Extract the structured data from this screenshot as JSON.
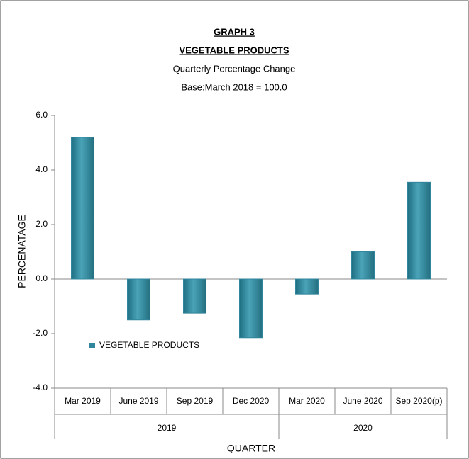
{
  "chart_data": {
    "type": "bar",
    "title": "GRAPH 3",
    "subtitle": "VEGETABLE PRODUCTS",
    "subtitle2": "Quarterly Percentage Change",
    "subtitle3": "Base:March 2018 = 100.0",
    "ylabel": "PERCENATAGE",
    "xlabel": "QUARTER",
    "categories": [
      "Mar 2019",
      "June 2019",
      "Sep 2019",
      "Dec 2020",
      "Mar 2020",
      "June 2020",
      "Sep 2020(p)"
    ],
    "groups": [
      {
        "label": "2019",
        "span": 4
      },
      {
        "label": "2020",
        "span": 3
      }
    ],
    "series": [
      {
        "name": "VEGETABLE PRODUCTS",
        "color": "#31859c",
        "values": [
          5.2,
          -1.5,
          -1.25,
          -2.15,
          -0.55,
          1.0,
          3.55
        ]
      }
    ],
    "ylim": [
      -4,
      6
    ],
    "yticks": [
      {
        "value": -4,
        "label": "-4.0"
      },
      {
        "value": -2,
        "label": "-2.0"
      },
      {
        "value": 0,
        "label": "0.0"
      },
      {
        "value": 2,
        "label": "2.0"
      },
      {
        "value": 4,
        "label": "4.0"
      },
      {
        "value": 6,
        "label": "6.0"
      }
    ],
    "legend": "lower-left",
    "grid": false
  }
}
